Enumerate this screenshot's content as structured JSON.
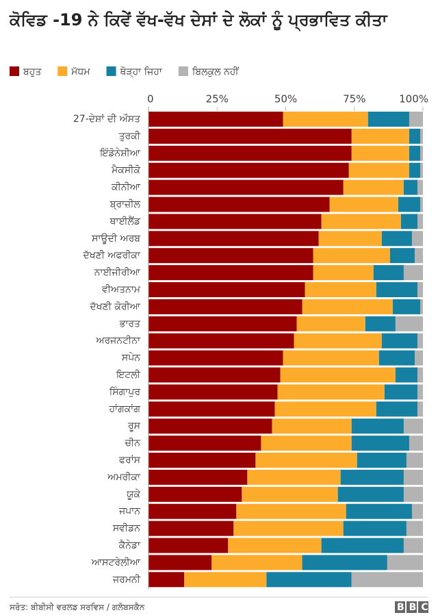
{
  "chart_data": {
    "type": "stacked_barh",
    "title": "ਕੋਵਿਡ -19 ਨੇ ਕਿਵੇਂ ਵੱਖ-ਵੱਖ ਦੇਸਾਂ ਦੇ ਲੋਕਾਂ ਨੂੰ ਪ੍ਰਭਾਵਿਤ ਕੀਤਾ",
    "categories": [
      "27-ਦੇਸ਼ਾਂ ਦੀ ਔਸਤ",
      "ਤੁਰਕੀ",
      "ਇੰਡੋਨੇਸ਼ੀਆ",
      "ਮੈਕਸੀਕੋ",
      "ਕੀਨੀਆ",
      "ਬ੍ਰਾਜ਼ੀਲ",
      "ਥਾਈਲੈਂਡ",
      "ਸਾਊਦੀ ਅਰਬ",
      "ਦੱਖਣੀ ਅਫਰੀਕਾ",
      "ਨਾਈਜੀਰੀਆ",
      "ਵੀਅਤਨਾਮ",
      "ਦੱਖਣੀ ਕੋਰੀਆ",
      "ਭਾਰਤ",
      "ਅਰਜਨਟੀਨਾ",
      "ਸਪੇਨ",
      "ਇਟਲੀ",
      "ਸਿੰਗਾਪੁਰ",
      "ਹਾਂਗਕਾਂਗ",
      "ਰੂਸ",
      "ਚੀਨ",
      "ਫਰਾਂਸ",
      "ਅਮਰੀਕਾ",
      "ਯੂਕੇ",
      "ਜਪਾਨ",
      "ਸਵੀਡਨ",
      "ਕੈਨੇਡਾ",
      "ਆਸਟਰੇਲੀਆ",
      "ਜਰਮਨੀ"
    ],
    "series": [
      {
        "name": "ਬਹੁਤ",
        "color": "#990000",
        "values": [
          49,
          74,
          74,
          73,
          71,
          66,
          63,
          62,
          60,
          60,
          57,
          56,
          54,
          53,
          49,
          48,
          47,
          46,
          45,
          41,
          39,
          36,
          34,
          32,
          31,
          29,
          23,
          13
        ]
      },
      {
        "name": "ਮੱਧਮ",
        "color": "#fdab2a",
        "values": [
          31,
          21,
          21,
          22,
          22,
          25,
          29,
          23,
          28,
          22,
          26,
          33,
          25,
          32,
          35,
          42,
          39,
          37,
          29,
          33,
          37,
          34,
          35,
          40,
          40,
          34,
          33,
          30
        ]
      },
      {
        "name": "ਥੋੜ੍ਹਾ ਜਿਹਾ",
        "color": "#1580a2",
        "values": [
          15,
          4,
          4,
          4,
          5,
          8,
          6,
          11,
          9,
          11,
          15,
          10,
          11,
          13,
          13,
          8,
          12,
          15,
          19,
          21,
          18,
          23,
          24,
          24,
          23,
          30,
          31,
          31
        ]
      },
      {
        "name": "ਬਿਲਕੁਲ ਨਹੀਂ",
        "color": "#b3b3b3",
        "values": [
          5,
          1,
          1,
          1,
          2,
          1,
          2,
          4,
          3,
          7,
          2,
          1,
          10,
          2,
          3,
          2,
          2,
          2,
          7,
          5,
          6,
          7,
          7,
          4,
          6,
          7,
          13,
          26
        ]
      }
    ],
    "xlim": [
      0,
      100
    ],
    "xticks": [
      0,
      {
        "value": 25,
        "label": "25%"
      },
      {
        "value": 50,
        "label": "50%"
      },
      {
        "value": 75,
        "label": "75%"
      },
      {
        "value": 100,
        "label": "100%"
      }
    ],
    "legend": "top-left",
    "source": "ਸਰੋਤ: ਬੀਬੀਸੀ ਵਰਲਡ ਸਰਵਿਸ / ਗਲੋਬਸਕੈਨ",
    "logo": "BBC"
  }
}
